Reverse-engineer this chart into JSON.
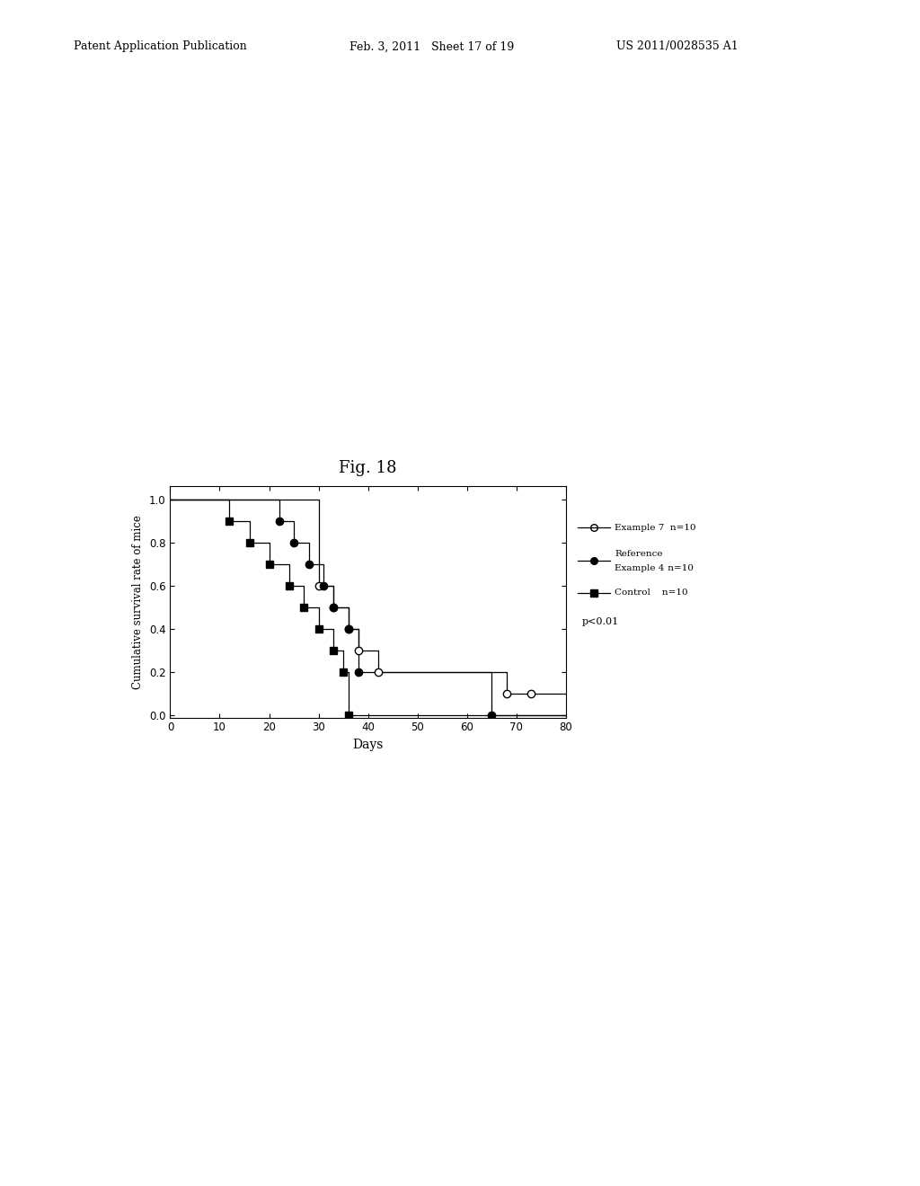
{
  "title": "Fig. 18",
  "xlabel": "Days",
  "ylabel": "Cumulative survival rate of mice",
  "header_left": "Patent Application Publication",
  "header_mid": "Feb. 3, 2011   Sheet 17 of 19",
  "header_right": "US 2011/0028535 A1",
  "xlim": [
    0,
    80
  ],
  "ylim": [
    0,
    1.05
  ],
  "xticks": [
    0,
    10,
    20,
    30,
    40,
    50,
    60,
    70,
    80
  ],
  "yticks": [
    0,
    0.2,
    0.4,
    0.6,
    0.8,
    1.0
  ],
  "pvalue_text": "p<0.01",
  "ex7_step_x": [
    0,
    30,
    30,
    33,
    33,
    36,
    36,
    38,
    38,
    42,
    42,
    68,
    68,
    73,
    73,
    80
  ],
  "ex7_step_y": [
    1.0,
    1.0,
    0.6,
    0.6,
    0.5,
    0.5,
    0.4,
    0.4,
    0.3,
    0.3,
    0.2,
    0.2,
    0.1,
    0.1,
    0.1,
    0.1
  ],
  "ex7_marker_x": [
    30,
    33,
    36,
    38,
    42,
    68,
    73
  ],
  "ex7_marker_y": [
    0.6,
    0.5,
    0.4,
    0.3,
    0.2,
    0.1,
    0.1
  ],
  "ref4_step_x": [
    0,
    22,
    22,
    25,
    25,
    28,
    28,
    31,
    31,
    33,
    33,
    36,
    36,
    38,
    38,
    65,
    65,
    80
  ],
  "ref4_step_y": [
    1.0,
    1.0,
    0.9,
    0.9,
    0.8,
    0.8,
    0.7,
    0.7,
    0.6,
    0.6,
    0.5,
    0.5,
    0.4,
    0.4,
    0.2,
    0.2,
    0.0,
    0.0
  ],
  "ref4_marker_x": [
    22,
    25,
    28,
    31,
    33,
    36,
    38,
    65
  ],
  "ref4_marker_y": [
    0.9,
    0.8,
    0.7,
    0.6,
    0.5,
    0.4,
    0.2,
    0.0
  ],
  "ctrl_step_x": [
    0,
    12,
    12,
    16,
    16,
    20,
    20,
    24,
    24,
    27,
    27,
    30,
    30,
    33,
    33,
    35,
    35,
    36,
    36,
    80
  ],
  "ctrl_step_y": [
    1.0,
    1.0,
    0.9,
    0.9,
    0.8,
    0.8,
    0.7,
    0.7,
    0.6,
    0.6,
    0.5,
    0.5,
    0.4,
    0.4,
    0.3,
    0.3,
    0.2,
    0.2,
    0.0,
    0.0
  ],
  "ctrl_marker_x": [
    12,
    16,
    20,
    24,
    27,
    30,
    33,
    35,
    36
  ],
  "ctrl_marker_y": [
    0.9,
    0.8,
    0.7,
    0.6,
    0.5,
    0.4,
    0.3,
    0.2,
    0.0
  ]
}
